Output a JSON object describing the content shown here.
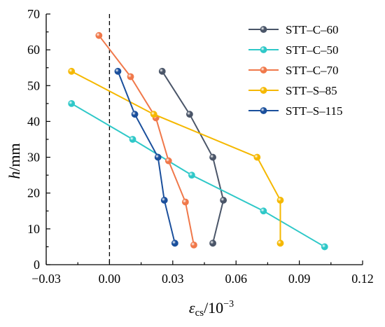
{
  "chart_data": {
    "type": "line",
    "xlabel": {
      "main": "ε",
      "sub": "cs",
      "rest": "/10",
      "sup": "−3"
    },
    "ylabel": {
      "italic": "h",
      "rest": "/mm"
    },
    "xlim": [
      -0.03,
      0.12
    ],
    "ylim": [
      0,
      70
    ],
    "xticks": [
      -0.03,
      0.0,
      0.03,
      0.06,
      0.09,
      0.12
    ],
    "xtick_labels": [
      "−0.03",
      "0.00",
      "0.03",
      "0.06",
      "0.09",
      "0.12"
    ],
    "yticks": [
      0,
      10,
      20,
      30,
      40,
      50,
      60,
      70
    ],
    "ytick_labels": [
      "0",
      "10",
      "20",
      "30",
      "40",
      "50",
      "60",
      "70"
    ],
    "reference_line": {
      "x": 0,
      "style": "dashed"
    },
    "legend_position": "top-right",
    "grid": false,
    "series": [
      {
        "name": "STT–C–60",
        "color": "#4a5568",
        "points": [
          [
            0.025,
            54
          ],
          [
            0.038,
            42
          ],
          [
            0.049,
            30
          ],
          [
            0.054,
            18
          ],
          [
            0.049,
            6
          ]
        ]
      },
      {
        "name": "STT–C–50",
        "color": "#2ec8c8",
        "points": [
          [
            -0.018,
            45
          ],
          [
            0.011,
            35
          ],
          [
            0.039,
            25
          ],
          [
            0.073,
            15
          ],
          [
            0.102,
            5
          ]
        ]
      },
      {
        "name": "STT–C–70",
        "color": "#f0784a",
        "points": [
          [
            -0.005,
            64
          ],
          [
            0.01,
            52.5
          ],
          [
            0.022,
            41
          ],
          [
            0.028,
            29
          ],
          [
            0.036,
            17.5
          ],
          [
            0.04,
            5.5
          ]
        ]
      },
      {
        "name": "STT–S–85",
        "color": "#f5b800",
        "points": [
          [
            -0.018,
            54
          ],
          [
            0.021,
            42
          ],
          [
            0.07,
            30
          ],
          [
            0.081,
            18
          ],
          [
            0.081,
            6
          ]
        ]
      },
      {
        "name": "STT–S–115",
        "color": "#1a4f9c",
        "points": [
          [
            0.004,
            54
          ],
          [
            0.012,
            42
          ],
          [
            0.023,
            30
          ],
          [
            0.026,
            18
          ],
          [
            0.031,
            6
          ]
        ]
      }
    ]
  }
}
